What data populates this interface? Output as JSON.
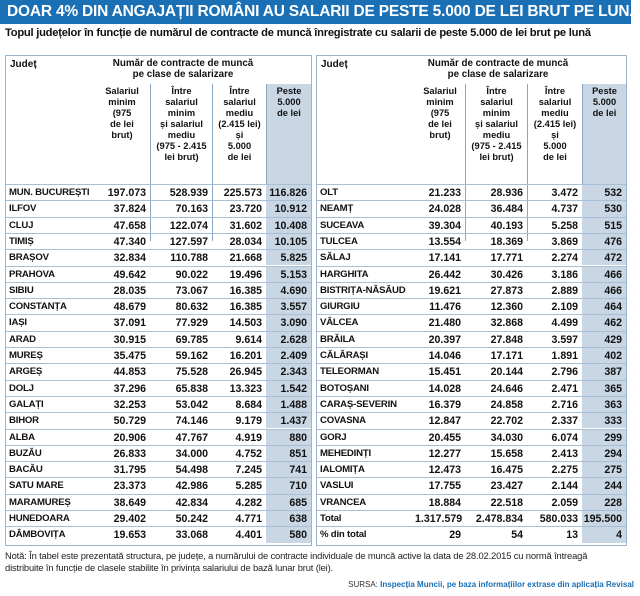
{
  "title": "DOAR 4% DIN ANGAJAȚII ROMÂNI AU SALARII DE PESTE 5.000 DE LEI BRUT PE LUNĂ",
  "subtitle": "Topul județelor în funcție de numărul de contracte de muncă înregistrate cu salarii de peste 5.000 de lei brut pe lună",
  "header": {
    "judet": "Județ",
    "group": "Număr de contracte de muncă\npe clase de salarizare",
    "cols": [
      "Salariul\nminim\n(975\nde lei\nbrut)",
      "Între\nsalariul\nminim\nși salariul\nmediu\n(975 - 2.415\nlei brut)",
      "Între\nsalariul\nmediu\n(2.415 lei)\nși\n5.000\nde lei",
      "Peste\n5.000\nde lei"
    ]
  },
  "left_rows": [
    [
      "MUN. BUCUREȘTI",
      "197.073",
      "528.939",
      "225.573",
      "116.826"
    ],
    [
      "ILFOV",
      "37.824",
      "70.163",
      "23.720",
      "10.912"
    ],
    [
      "CLUJ",
      "47.658",
      "122.074",
      "31.602",
      "10.408"
    ],
    [
      "TIMIȘ",
      "47.340",
      "127.597",
      "28.034",
      "10.105"
    ],
    [
      "BRAȘOV",
      "32.834",
      "110.788",
      "21.668",
      "5.825"
    ],
    [
      "PRAHOVA",
      "49.642",
      "90.022",
      "19.496",
      "5.153"
    ],
    [
      "SIBIU",
      "28.035",
      "73.067",
      "16.385",
      "4.690"
    ],
    [
      "CONSTANȚA",
      "48.679",
      "80.632",
      "16.385",
      "3.557"
    ],
    [
      "IAȘI",
      "37.091",
      "77.929",
      "14.503",
      "3.090"
    ],
    [
      "ARAD",
      "30.915",
      "69.785",
      "9.614",
      "2.628"
    ],
    [
      "MUREȘ",
      "35.475",
      "59.162",
      "16.201",
      "2.409"
    ],
    [
      "ARGEȘ",
      "44.853",
      "75.528",
      "26.945",
      "2.343"
    ],
    [
      "DOLJ",
      "37.296",
      "65.838",
      "13.323",
      "1.542"
    ],
    [
      "GALAȚI",
      "32.253",
      "53.042",
      "8.684",
      "1.488"
    ],
    [
      "BIHOR",
      "50.729",
      "74.146",
      "9.179",
      "1.437"
    ],
    [
      "ALBA",
      "20.906",
      "47.767",
      "4.919",
      "880"
    ],
    [
      "BUZĂU",
      "26.833",
      "34.000",
      "4.752",
      "851"
    ],
    [
      "BACĂU",
      "31.795",
      "54.498",
      "7.245",
      "741"
    ],
    [
      "SATU MARE",
      "23.373",
      "42.986",
      "5.285",
      "710"
    ],
    [
      "MARAMUREȘ",
      "38.649",
      "42.834",
      "4.282",
      "685"
    ],
    [
      "HUNEDOARA",
      "29.402",
      "50.242",
      "4.771",
      "638"
    ],
    [
      "DÂMBOVIȚA",
      "19.653",
      "33.068",
      "4.401",
      "580"
    ]
  ],
  "right_rows": [
    [
      "OLT",
      "21.233",
      "28.936",
      "3.472",
      "532"
    ],
    [
      "NEAMȚ",
      "24.028",
      "36.484",
      "4.737",
      "530"
    ],
    [
      "SUCEAVA",
      "39.304",
      "40.193",
      "5.258",
      "515"
    ],
    [
      "TULCEA",
      "13.554",
      "18.369",
      "3.869",
      "476"
    ],
    [
      "SĂLAJ",
      "17.141",
      "17.771",
      "2.274",
      "472"
    ],
    [
      "HARGHITA",
      "26.442",
      "30.426",
      "3.186",
      "466"
    ],
    [
      "BISTRIȚA-NĂSĂUD",
      "19.621",
      "27.873",
      "2.889",
      "466"
    ],
    [
      "GIURGIU",
      "11.476",
      "12.360",
      "2.109",
      "464"
    ],
    [
      "VÂLCEA",
      "21.480",
      "32.868",
      "4.499",
      "462"
    ],
    [
      "BRĂILA",
      "20.397",
      "27.848",
      "3.597",
      "429"
    ],
    [
      "CĂLĂRAȘI",
      "14.046",
      "17.171",
      "1.891",
      "402"
    ],
    [
      "TELEORMAN",
      "15.451",
      "20.144",
      "2.796",
      "387"
    ],
    [
      "BOTOȘANI",
      "14.028",
      "24.646",
      "2.471",
      "365"
    ],
    [
      "CARAȘ-SEVERIN",
      "16.379",
      "24.858",
      "2.716",
      "363"
    ],
    [
      "COVASNA",
      "12.847",
      "22.702",
      "2.337",
      "333"
    ],
    [
      "GORJ",
      "20.455",
      "34.030",
      "6.074",
      "299"
    ],
    [
      "MEHEDINȚI",
      "12.277",
      "15.658",
      "2.413",
      "294"
    ],
    [
      "IALOMIȚA",
      "12.473",
      "16.475",
      "2.275",
      "275"
    ],
    [
      "VASLUI",
      "17.755",
      "23.427",
      "2.144",
      "244"
    ],
    [
      "VRANCEA",
      "18.884",
      "22.518",
      "2.059",
      "228"
    ],
    [
      "Total",
      "1.317.579",
      "2.478.834",
      "580.033",
      "195.500"
    ],
    [
      "% din total",
      "29",
      "54",
      "13",
      "4"
    ]
  ],
  "note": "Notă: În tabel este prezentată structura, pe județe, a numărului de contracte individuale de muncă active la data de 28.02.2015 cu normă întreagă distribuite în funcție de clasele stabilite în privința salariului de bază lunar brut (lei).",
  "source_label": "SURSA:",
  "source_text": "Inspecția Muncii, pe baza informațiilor extrase din aplicația Revisal",
  "colors": {
    "banner": "#1a6fb5",
    "shade": "#c9d6e4"
  }
}
